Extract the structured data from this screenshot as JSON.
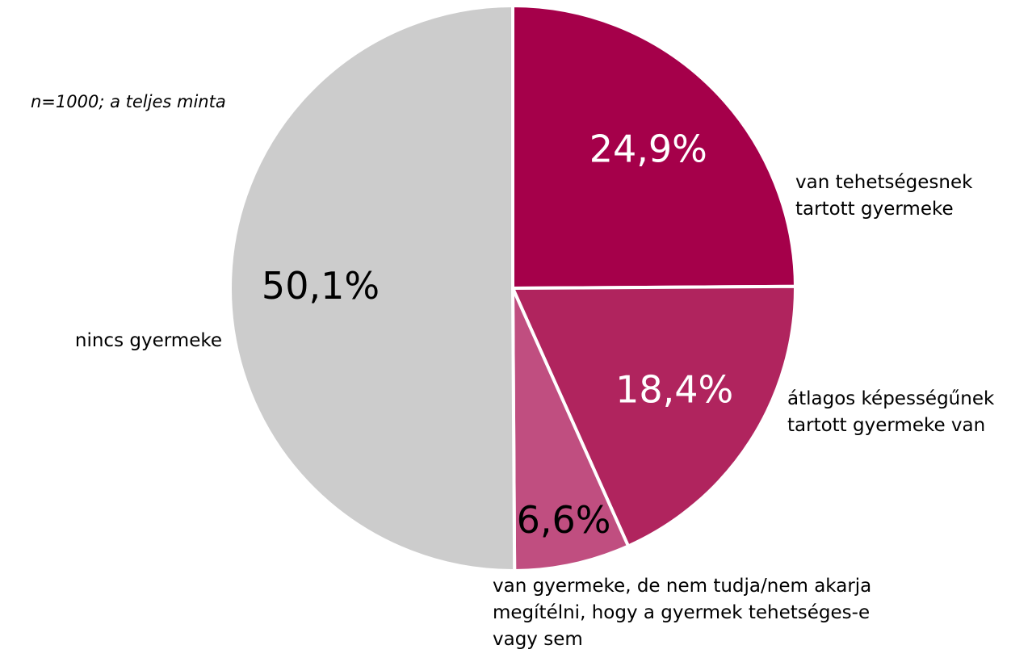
{
  "chart_data": {
    "type": "pie",
    "note": "n=1000; a teljes minta",
    "categories": [
      "van tehetségesnek tartott gyermeke",
      "átlagos képességűnek tartott gyermeke van",
      "van gyermeke, de nem tudja/nem akarja megítélni, hogy a gyermek tehetséges-e vagy sem",
      "nincs gyermeke"
    ],
    "values": [
      24.9,
      18.4,
      6.6,
      50.1
    ],
    "value_labels": [
      "24,9%",
      "18,4%",
      "6,6%",
      "50,1%"
    ],
    "colors": [
      "#a5004a",
      "#b0245e",
      "#c04e80",
      "#cccccc"
    ],
    "label_colors": [
      "#ffffff",
      "#ffffff",
      "#000000",
      "#000000"
    ]
  }
}
